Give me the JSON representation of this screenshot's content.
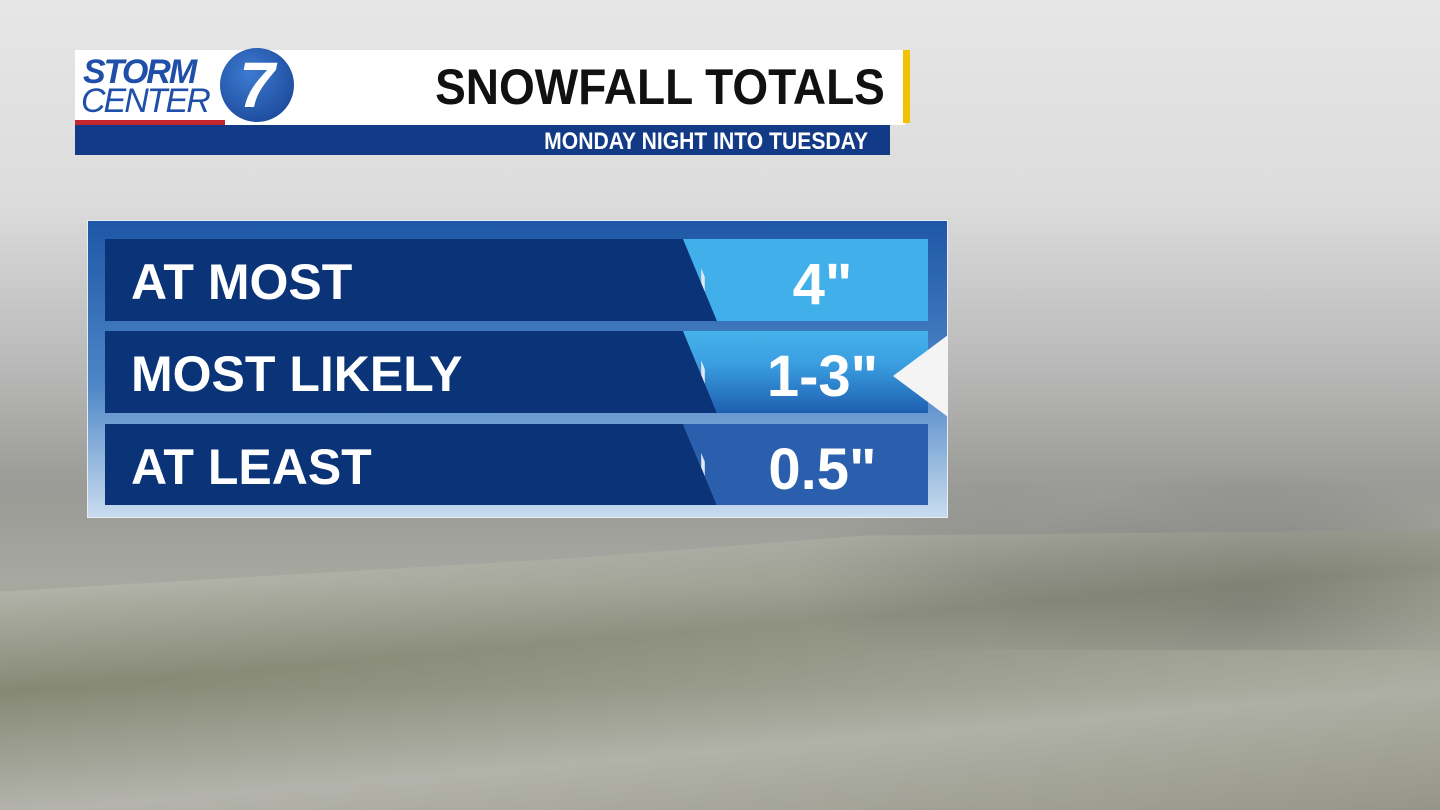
{
  "logo": {
    "line1": "STORM",
    "line2": "CENTER",
    "number": "7"
  },
  "header": {
    "title": "SNOWFALL TOTALS",
    "subtitle": "MONDAY NIGHT INTO TUESDAY"
  },
  "rows": [
    {
      "label": "AT MOST",
      "value": "4\""
    },
    {
      "label": "MOST LIKELY",
      "value": "1-3\"",
      "highlighted": true
    },
    {
      "label": "AT LEAST",
      "value": "0.5\""
    }
  ],
  "colors": {
    "navy": "#0b3478",
    "light_blue": "#41b0ea",
    "mid_blue": "#2a5fae",
    "accent_yellow": "#f2c200",
    "red": "#c1272d"
  }
}
